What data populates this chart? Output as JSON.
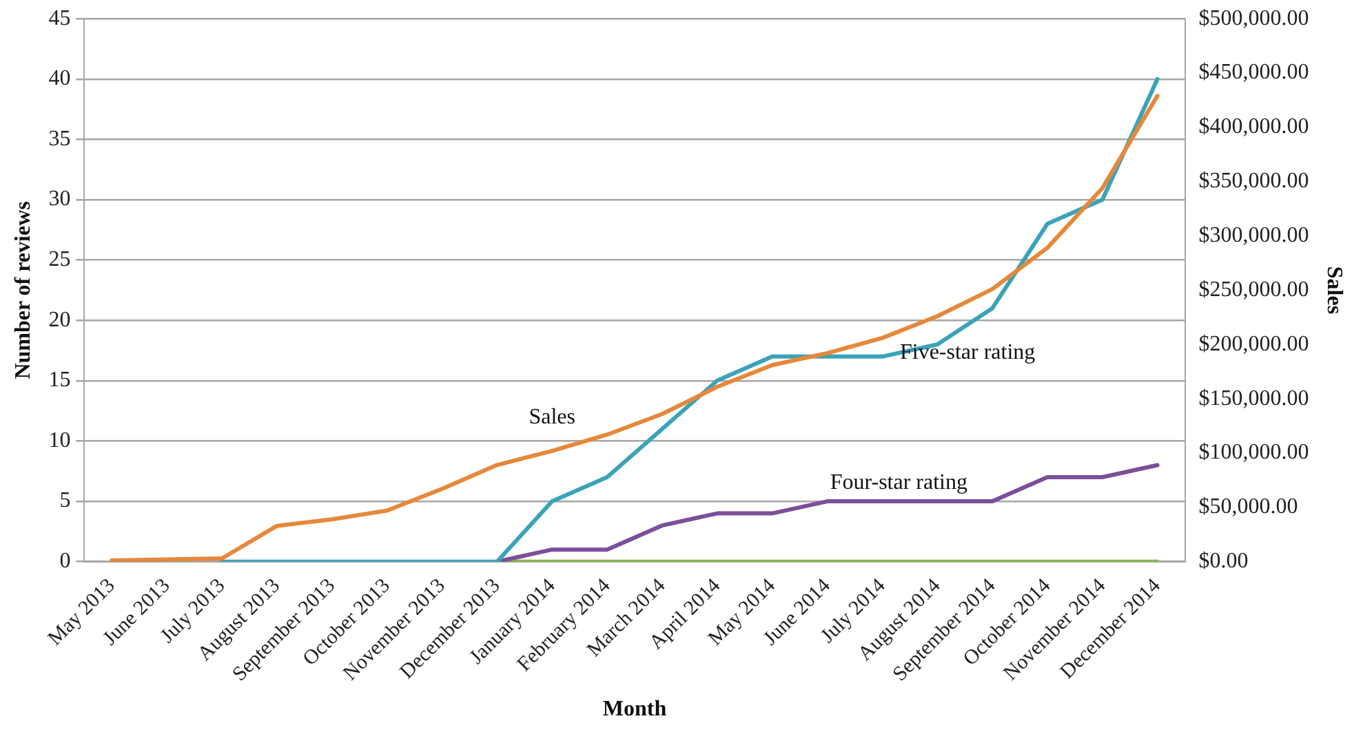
{
  "chart_data": {
    "type": "line",
    "xlabel": "Month",
    "ylabel": "Number of reviews",
    "y2label": "Sales",
    "categories": [
      "May 2013",
      "June 2013",
      "July 2013",
      "August 2013",
      "September 2013",
      "October 2013",
      "November 2013",
      "December 2013",
      "January 2014",
      "February 2014",
      "March 2014",
      "April 2014",
      "May 2014",
      "June 2014",
      "July 2014",
      "August 2014",
      "September 2014",
      "October 2014",
      "November 2014",
      "December 2014"
    ],
    "series": [
      {
        "color": "#8cb84c",
        "values": [
          null,
          null,
          null,
          null,
          null,
          null,
          null,
          0,
          0,
          0,
          0,
          0,
          0,
          0,
          0,
          0,
          0,
          0,
          0,
          0
        ]
      },
      {
        "name": "Four-star rating",
        "color": "#7b4f9a",
        "values": [
          null,
          null,
          null,
          null,
          null,
          null,
          null,
          0,
          1,
          1,
          3,
          4,
          4,
          5,
          5,
          5,
          5,
          7,
          7,
          8
        ]
      },
      {
        "name": "Five-star rating",
        "color": "#3aa3b8",
        "values": [
          null,
          null,
          0,
          0,
          0,
          0,
          0,
          0,
          5,
          7,
          11,
          15,
          17,
          17,
          17,
          18,
          21,
          28,
          30,
          40
        ]
      },
      {
        "name": "Sales",
        "color": "#e6883a",
        "axis": "y2",
        "values": [
          1000,
          2000,
          3000,
          33000,
          39000,
          47000,
          67000,
          89000,
          102000,
          117000,
          136000,
          161000,
          181000,
          192000,
          206000,
          226000,
          251000,
          289000,
          344000,
          429000
        ]
      }
    ],
    "ylim": [
      0,
      45
    ],
    "yticks": [
      0,
      5,
      10,
      15,
      20,
      25,
      30,
      35,
      40,
      45
    ],
    "y2lim": [
      0,
      500000
    ],
    "y2ticks": [
      {
        "value": 0,
        "label": "$0.00"
      },
      {
        "value": 50000,
        "label": "$50,000.00"
      },
      {
        "value": 100000,
        "label": "$100,000.00"
      },
      {
        "value": 150000,
        "label": "$150,000.00"
      },
      {
        "value": 200000,
        "label": "$200,000.00"
      },
      {
        "value": 250000,
        "label": "$250,000.00"
      },
      {
        "value": 300000,
        "label": "$300,000.00"
      },
      {
        "value": 350000,
        "label": "$350,000.00"
      },
      {
        "value": 400000,
        "label": "$400,000.00"
      },
      {
        "value": 450000,
        "label": "$450,000.00"
      },
      {
        "value": 500000,
        "label": "$500,000.00"
      }
    ],
    "grid": "y",
    "legend": false,
    "marker": "none",
    "line_style": "solid"
  }
}
